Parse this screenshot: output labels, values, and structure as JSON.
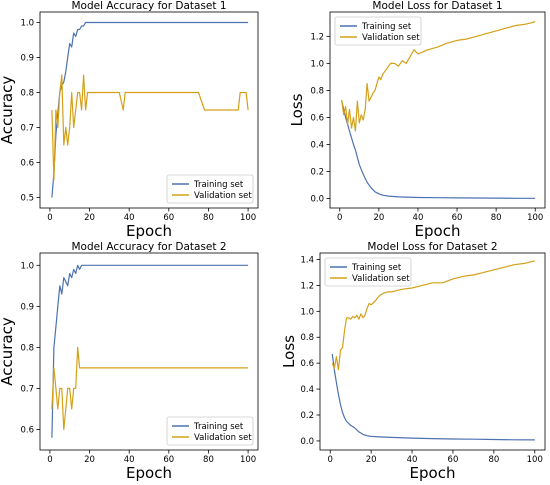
{
  "colors": {
    "training": "#4c72b0",
    "validation": "#d4a017"
  },
  "chart_data": [
    {
      "type": "line",
      "title": "Model Accuracy for Dataset 1",
      "xlabel": "Epoch",
      "ylabel": "Accuracy",
      "xlim": [
        -5,
        105
      ],
      "ylim": [
        0.47,
        1.03
      ],
      "xticks": [
        0,
        20,
        40,
        60,
        80,
        100
      ],
      "yticks": [
        0.5,
        0.6,
        0.7,
        0.8,
        0.9,
        1.0
      ],
      "legend_position": "bottom-right",
      "legend": [
        "Training set",
        "Validation set"
      ],
      "grid": false,
      "series": [
        {
          "name": "Training set",
          "x": [
            1,
            2,
            3,
            4,
            5,
            6,
            7,
            8,
            9,
            10,
            11,
            12,
            13,
            14,
            15,
            16,
            17,
            18,
            20,
            25,
            30,
            40,
            50,
            60,
            70,
            80,
            90,
            100
          ],
          "y": [
            0.5,
            0.57,
            0.68,
            0.74,
            0.8,
            0.82,
            0.83,
            0.86,
            0.9,
            0.94,
            0.93,
            0.97,
            0.96,
            0.98,
            0.98,
            0.99,
            0.99,
            1.0,
            1.0,
            1.0,
            1.0,
            1.0,
            1.0,
            1.0,
            1.0,
            1.0,
            1.0,
            1.0
          ]
        },
        {
          "name": "Validation set",
          "x": [
            1,
            2,
            3,
            4,
            5,
            6,
            7,
            8,
            9,
            10,
            11,
            12,
            13,
            14,
            15,
            16,
            17,
            18,
            19,
            20,
            25,
            30,
            35,
            37,
            38,
            40,
            45,
            50,
            55,
            60,
            65,
            70,
            75,
            78,
            80,
            85,
            90,
            95,
            96,
            97,
            98,
            99,
            100
          ],
          "y": [
            0.75,
            0.55,
            0.75,
            0.7,
            0.8,
            0.85,
            0.65,
            0.7,
            0.65,
            0.7,
            0.8,
            0.7,
            0.75,
            0.8,
            0.8,
            0.75,
            0.85,
            0.75,
            0.8,
            0.8,
            0.8,
            0.8,
            0.8,
            0.75,
            0.8,
            0.8,
            0.8,
            0.8,
            0.8,
            0.8,
            0.8,
            0.8,
            0.8,
            0.75,
            0.75,
            0.75,
            0.75,
            0.75,
            0.8,
            0.8,
            0.8,
            0.8,
            0.75
          ]
        }
      ]
    },
    {
      "type": "line",
      "title": "Model Loss for Dataset 1",
      "xlabel": "Epoch",
      "ylabel": "Loss",
      "xlim": [
        -5,
        105
      ],
      "ylim": [
        -0.07,
        1.38
      ],
      "xticks": [
        0,
        20,
        40,
        60,
        80,
        100
      ],
      "yticks": [
        0.0,
        0.2,
        0.4,
        0.6,
        0.8,
        1.0,
        1.2
      ],
      "legend_position": "top-left",
      "legend": [
        "Training set",
        "Validation set"
      ],
      "grid": false,
      "series": [
        {
          "name": "Training set",
          "x": [
            1,
            2,
            3,
            4,
            5,
            6,
            7,
            8,
            10,
            12,
            14,
            16,
            18,
            20,
            22,
            25,
            30,
            40,
            50,
            60,
            70,
            80,
            90,
            100
          ],
          "y": [
            0.72,
            0.66,
            0.6,
            0.55,
            0.5,
            0.45,
            0.4,
            0.36,
            0.25,
            0.18,
            0.12,
            0.08,
            0.05,
            0.035,
            0.025,
            0.018,
            0.012,
            0.008,
            0.006,
            0.005,
            0.004,
            0.003,
            0.002,
            0.002
          ]
        },
        {
          "name": "Validation set",
          "x": [
            1,
            2,
            3,
            4,
            5,
            6,
            7,
            8,
            9,
            10,
            11,
            12,
            13,
            14,
            15,
            16,
            17,
            18,
            20,
            21,
            22,
            24,
            26,
            28,
            30,
            32,
            34,
            36,
            38,
            40,
            45,
            50,
            55,
            60,
            65,
            70,
            75,
            80,
            85,
            90,
            95,
            98,
            100
          ],
          "y": [
            0.73,
            0.62,
            0.68,
            0.55,
            0.66,
            0.52,
            0.6,
            0.5,
            0.72,
            0.56,
            0.62,
            0.58,
            0.66,
            0.85,
            0.72,
            0.75,
            0.78,
            0.8,
            0.9,
            0.88,
            0.92,
            0.96,
            1.0,
            1.0,
            0.98,
            1.02,
            1.0,
            1.05,
            1.1,
            1.07,
            1.1,
            1.12,
            1.15,
            1.17,
            1.18,
            1.2,
            1.22,
            1.24,
            1.26,
            1.28,
            1.29,
            1.3,
            1.31
          ]
        }
      ]
    },
    {
      "type": "line",
      "title": "Model Accuracy for Dataset 2",
      "xlabel": "Epoch",
      "ylabel": "Accuracy",
      "xlim": [
        -5,
        105
      ],
      "ylim": [
        0.55,
        1.03
      ],
      "xticks": [
        0,
        20,
        40,
        60,
        80,
        100
      ],
      "yticks": [
        0.6,
        0.7,
        0.8,
        0.9,
        1.0
      ],
      "legend_position": "bottom-right",
      "legend": [
        "Training set",
        "Validation set"
      ],
      "grid": false,
      "series": [
        {
          "name": "Training set",
          "x": [
            1,
            2,
            3,
            4,
            5,
            6,
            7,
            8,
            9,
            10,
            11,
            12,
            13,
            14,
            15,
            16,
            20,
            30,
            40,
            50,
            60,
            70,
            80,
            90,
            100
          ],
          "y": [
            0.58,
            0.8,
            0.85,
            0.9,
            0.95,
            0.93,
            0.97,
            0.96,
            0.95,
            0.98,
            0.97,
            0.99,
            0.98,
            1.0,
            0.99,
            1.0,
            1.0,
            1.0,
            1.0,
            1.0,
            1.0,
            1.0,
            1.0,
            1.0,
            1.0
          ]
        },
        {
          "name": "Validation set",
          "x": [
            1,
            2,
            3,
            4,
            5,
            6,
            7,
            8,
            9,
            10,
            11,
            12,
            13,
            14,
            15,
            16,
            20,
            30,
            40,
            50,
            60,
            70,
            80,
            90,
            100
          ],
          "y": [
            0.65,
            0.75,
            0.7,
            0.65,
            0.7,
            0.7,
            0.6,
            0.65,
            0.7,
            0.7,
            0.65,
            0.7,
            0.7,
            0.8,
            0.75,
            0.75,
            0.75,
            0.75,
            0.75,
            0.75,
            0.75,
            0.75,
            0.75,
            0.75,
            0.75
          ]
        }
      ]
    },
    {
      "type": "line",
      "title": "Model Loss for Dataset 2",
      "xlabel": "Epoch",
      "ylabel": "Loss",
      "xlim": [
        -5,
        105
      ],
      "ylim": [
        -0.07,
        1.45
      ],
      "xticks": [
        0,
        20,
        40,
        60,
        80,
        100
      ],
      "yticks": [
        0.0,
        0.2,
        0.4,
        0.6,
        0.8,
        1.0,
        1.2,
        1.4
      ],
      "legend_position": "top-left",
      "legend": [
        "Training set",
        "Validation set"
      ],
      "grid": false,
      "series": [
        {
          "name": "Training set",
          "x": [
            1,
            2,
            3,
            4,
            5,
            6,
            7,
            8,
            10,
            12,
            14,
            16,
            18,
            20,
            25,
            30,
            40,
            50,
            60,
            70,
            80,
            90,
            100
          ],
          "y": [
            0.67,
            0.55,
            0.45,
            0.36,
            0.28,
            0.22,
            0.18,
            0.15,
            0.12,
            0.1,
            0.07,
            0.05,
            0.04,
            0.035,
            0.03,
            0.027,
            0.022,
            0.018,
            0.015,
            0.013,
            0.011,
            0.009,
            0.008
          ]
        },
        {
          "name": "Validation set",
          "x": [
            1,
            2,
            3,
            4,
            5,
            6,
            7,
            8,
            9,
            10,
            11,
            12,
            13,
            14,
            15,
            16,
            17,
            18,
            19,
            20,
            22,
            24,
            26,
            28,
            30,
            35,
            40,
            45,
            50,
            55,
            60,
            65,
            70,
            75,
            80,
            85,
            90,
            95,
            100
          ],
          "y": [
            0.6,
            0.56,
            0.65,
            0.55,
            0.7,
            0.72,
            0.85,
            0.95,
            0.95,
            0.94,
            0.96,
            0.95,
            0.97,
            0.94,
            0.98,
            0.95,
            0.97,
            1.02,
            1.06,
            1.05,
            1.08,
            1.12,
            1.14,
            1.15,
            1.15,
            1.17,
            1.18,
            1.2,
            1.22,
            1.22,
            1.25,
            1.27,
            1.28,
            1.3,
            1.32,
            1.34,
            1.36,
            1.37,
            1.39
          ]
        }
      ]
    }
  ]
}
